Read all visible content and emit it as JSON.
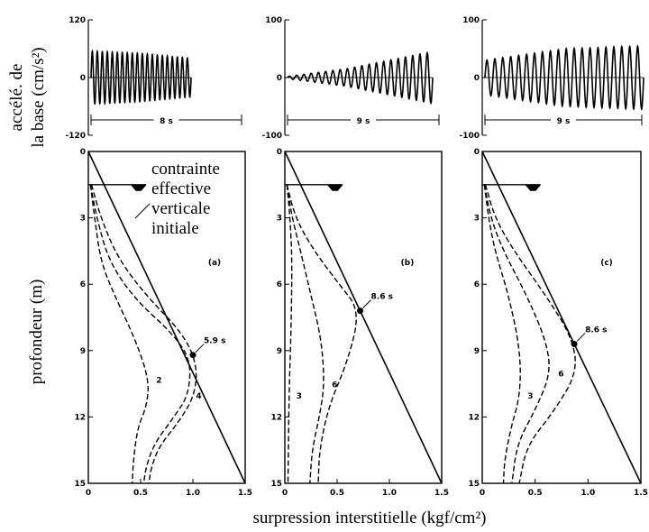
{
  "figure": {
    "accel_ylabel_1": "accélé. de",
    "accel_ylabel_2": "la base (cm/s²)",
    "depth_ylabel": "profondeur (m)",
    "xlabel": "surpression interstitielle (kgf/cm²)",
    "annotation": [
      "contrainte",
      "effective",
      "verticale",
      "initiale"
    ]
  },
  "chart_data": [
    {
      "type": "line",
      "panel": "accélération (a)",
      "ylim": [
        -120,
        120
      ],
      "yticks": [
        "120",
        "0",
        "-120"
      ],
      "duration_label": "8 s",
      "amplitude_profile": [
        {
          "t": 0.0,
          "amp": 55
        },
        {
          "t": 0.5,
          "amp": 50
        },
        {
          "t": 1.0,
          "amp": 40
        },
        {
          "t": 1.0001,
          "amp": 0
        }
      ]
    },
    {
      "type": "line",
      "panel": "accélération (b)",
      "ylim": [
        -100,
        100
      ],
      "yticks": [
        "100",
        "0",
        "-100"
      ],
      "duration_label": "9 s",
      "amplitude_profile": [
        {
          "t": 0.0,
          "amp": 2
        },
        {
          "t": 0.4,
          "amp": 15
        },
        {
          "t": 1.0,
          "amp": 45
        }
      ]
    },
    {
      "type": "line",
      "panel": "accélération (c)",
      "ylim": [
        -100,
        100
      ],
      "yticks": [
        "100",
        "0",
        "-100"
      ],
      "duration_label": "9 s",
      "amplitude_profile": [
        {
          "t": 0.0,
          "amp": 30
        },
        {
          "t": 0.5,
          "amp": 50
        },
        {
          "t": 1.0,
          "amp": 55
        }
      ]
    },
    {
      "type": "line",
      "panel": "(a)",
      "xlim": [
        0,
        1.5
      ],
      "ylim": [
        0,
        15
      ],
      "xticks": [
        "0",
        "0.5",
        "1.0",
        "1.5"
      ],
      "yticks": [
        "0",
        "3",
        "6",
        "9",
        "12",
        "15"
      ],
      "water_table_depth": 1.5,
      "effective_stress": [
        {
          "x": 0,
          "y": 0
        },
        {
          "x": 1.5,
          "y": 15
        }
      ],
      "marker": {
        "x": 1.0,
        "y": 9.2,
        "label": "5.9 s"
      },
      "series": [
        {
          "name": "2",
          "points": [
            [
              0.02,
              1.5
            ],
            [
              0.06,
              3
            ],
            [
              0.12,
              5
            ],
            [
              0.25,
              6.5
            ],
            [
              0.45,
              8.5
            ],
            [
              0.58,
              10.3
            ],
            [
              0.56,
              11.5
            ],
            [
              0.47,
              12.5
            ],
            [
              0.43,
              14
            ],
            [
              0.42,
              15
            ]
          ]
        },
        {
          "name": "4",
          "points": [
            [
              0.02,
              1.5
            ],
            [
              0.08,
              3
            ],
            [
              0.2,
              5
            ],
            [
              0.45,
              6.7
            ],
            [
              0.8,
              8.2
            ],
            [
              0.98,
              9.4
            ],
            [
              0.96,
              11
            ],
            [
              0.82,
              12
            ],
            [
              0.63,
              13.2
            ],
            [
              0.55,
              14.3
            ],
            [
              0.53,
              15
            ]
          ]
        },
        {
          "points": [
            [
              0.03,
              1.5
            ],
            [
              0.12,
              3
            ],
            [
              0.28,
              4.8
            ],
            [
              0.55,
              6.5
            ],
            [
              0.9,
              8.2
            ],
            [
              1.04,
              9.6
            ],
            [
              1.02,
              11
            ],
            [
              0.87,
              12.2
            ],
            [
              0.68,
              13.3
            ],
            [
              0.6,
              14.3
            ],
            [
              0.58,
              15
            ]
          ]
        }
      ]
    },
    {
      "type": "line",
      "panel": "(b)",
      "xlim": [
        0,
        1.5
      ],
      "ylim": [
        0,
        15
      ],
      "xticks": [
        "0",
        "0.5",
        "1.0",
        "1.5"
      ],
      "yticks": [
        "0",
        "3",
        "6",
        "9",
        "12",
        "15"
      ],
      "water_table_depth": 1.5,
      "effective_stress": [
        {
          "x": 0,
          "y": 0
        },
        {
          "x": 1.5,
          "y": 15
        }
      ],
      "marker": {
        "x": 0.72,
        "y": 7.2,
        "label": "8.6 s"
      },
      "series": [
        {
          "name": "3",
          "points": [
            [
              0.02,
              1.5
            ],
            [
              0.05,
              3
            ],
            [
              0.07,
              5
            ],
            [
              0.06,
              8
            ],
            [
              0.04,
              11
            ],
            [
              0.03,
              15
            ]
          ]
        },
        {
          "name": "6",
          "points": [
            [
              0.02,
              1.5
            ],
            [
              0.07,
              3
            ],
            [
              0.15,
              4.5
            ],
            [
              0.25,
              6.5
            ],
            [
              0.35,
              8.5
            ],
            [
              0.38,
              10.5
            ],
            [
              0.33,
              12
            ],
            [
              0.26,
              13.5
            ],
            [
              0.24,
              15
            ]
          ]
        },
        {
          "points": [
            [
              0.02,
              1.5
            ],
            [
              0.1,
              3
            ],
            [
              0.28,
              4.5
            ],
            [
              0.52,
              6
            ],
            [
              0.72,
              7.2
            ],
            [
              0.6,
              9.5
            ],
            [
              0.42,
              11.5
            ],
            [
              0.33,
              13.5
            ],
            [
              0.32,
              15
            ]
          ]
        }
      ]
    },
    {
      "type": "line",
      "panel": "(c)",
      "xlim": [
        0,
        1.5
      ],
      "ylim": [
        0,
        15
      ],
      "xticks": [
        "0",
        "0.5",
        "1.0",
        "1.5"
      ],
      "yticks": [
        "0",
        "3",
        "6",
        "9",
        "12",
        "15"
      ],
      "water_table_depth": 1.5,
      "effective_stress": [
        {
          "x": 0,
          "y": 0
        },
        {
          "x": 1.5,
          "y": 15
        }
      ],
      "marker": {
        "x": 0.87,
        "y": 8.7,
        "label": "8.6 s"
      },
      "series": [
        {
          "name": "3",
          "points": [
            [
              0.02,
              1.5
            ],
            [
              0.06,
              3
            ],
            [
              0.12,
              4.5
            ],
            [
              0.25,
              6.5
            ],
            [
              0.36,
              9
            ],
            [
              0.36,
              11
            ],
            [
              0.27,
              12.5
            ],
            [
              0.21,
              14
            ],
            [
              0.2,
              15
            ]
          ]
        },
        {
          "name": "6",
          "points": [
            [
              0.02,
              1.5
            ],
            [
              0.08,
              3
            ],
            [
              0.2,
              4.5
            ],
            [
              0.42,
              6.5
            ],
            [
              0.6,
              8.5
            ],
            [
              0.65,
              10
            ],
            [
              0.5,
              11.7
            ],
            [
              0.33,
              13.2
            ],
            [
              0.28,
              15
            ]
          ]
        },
        {
          "points": [
            [
              0.03,
              1.5
            ],
            [
              0.12,
              3
            ],
            [
              0.3,
              4.5
            ],
            [
              0.6,
              6.5
            ],
            [
              0.85,
              8.4
            ],
            [
              0.9,
              10
            ],
            [
              0.67,
              11.8
            ],
            [
              0.42,
              13.3
            ],
            [
              0.35,
              15
            ]
          ]
        }
      ]
    }
  ]
}
